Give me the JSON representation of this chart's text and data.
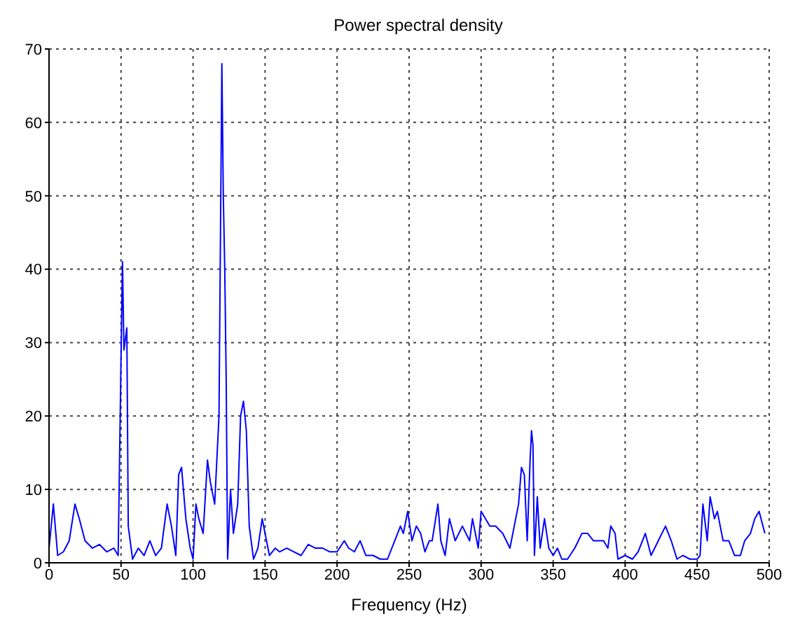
{
  "chart_data": {
    "type": "line",
    "title": "Power spectral density",
    "xlabel": "Frequency (Hz)",
    "x": [
      0,
      3,
      6,
      10,
      14,
      18,
      21,
      25,
      30,
      35,
      40,
      45,
      48,
      50,
      51,
      52,
      54,
      55,
      58,
      62,
      66,
      70,
      74,
      78,
      82,
      85,
      88,
      90,
      92,
      95,
      98,
      100,
      102,
      104,
      107,
      110,
      112,
      115,
      118,
      120,
      121,
      122,
      123,
      124,
      126,
      128,
      131,
      133,
      135,
      137,
      139,
      142,
      145,
      148,
      150,
      153,
      157,
      160,
      165,
      170,
      175,
      180,
      185,
      190,
      195,
      200,
      205,
      208,
      212,
      216,
      220,
      225,
      230,
      235,
      240,
      244,
      246,
      249,
      252,
      255,
      258,
      261,
      264,
      266,
      270,
      272,
      275,
      278,
      282,
      287,
      292,
      294,
      298,
      300,
      303,
      306,
      310,
      315,
      320,
      324,
      326,
      328,
      330,
      332,
      334,
      335,
      336,
      337,
      339,
      341,
      344,
      347,
      350,
      353,
      356,
      360,
      365,
      370,
      374,
      378,
      381,
      385,
      388,
      390,
      393,
      395,
      400,
      405,
      409,
      414,
      418,
      423,
      428,
      432,
      436,
      440,
      445,
      450,
      452,
      454,
      457,
      459,
      462,
      464,
      468,
      472,
      476,
      480,
      483,
      487,
      490,
      493,
      497
    ],
    "series": [
      {
        "color": "#0000ff",
        "values": [
          2,
          8,
          1,
          1.5,
          3,
          8,
          6,
          3,
          2,
          2.5,
          1.5,
          2,
          1,
          28,
          41,
          29,
          32,
          5,
          0.5,
          2,
          1,
          3,
          1,
          2,
          8,
          5,
          1,
          12,
          13,
          6,
          2,
          0.5,
          8,
          6,
          4,
          14,
          11,
          8,
          20,
          68,
          50,
          40,
          25,
          0.5,
          10,
          4,
          8,
          20,
          22,
          18,
          5,
          0.5,
          2,
          6,
          4,
          1,
          2,
          1.5,
          2,
          1.5,
          1,
          2.5,
          2,
          2,
          1.5,
          1.5,
          3,
          2,
          1.5,
          3,
          1,
          1,
          0.5,
          0.5,
          3,
          5,
          4,
          7,
          3,
          5,
          4,
          1.5,
          3,
          3,
          8,
          3,
          1,
          6,
          3,
          5,
          3,
          6,
          2,
          7,
          6,
          5,
          5,
          4,
          2,
          6,
          8,
          13,
          12,
          3,
          14,
          18,
          16,
          1,
          9,
          2,
          6,
          2,
          1,
          2,
          0.5,
          0.5,
          2,
          4,
          4,
          3,
          3,
          3,
          2,
          5,
          4,
          0.5,
          1,
          0.5,
          1.5,
          4,
          1,
          3,
          5,
          3,
          0.5,
          1,
          0.5,
          0.5,
          1,
          8,
          3,
          9,
          6,
          7,
          3,
          3,
          1,
          1,
          3,
          4,
          6,
          7,
          4
        ]
      }
    ],
    "xlim": [
      0,
      500
    ],
    "xticks": [
      0,
      50,
      100,
      150,
      200,
      250,
      300,
      350,
      400,
      450,
      500
    ],
    "ylim": [
      0,
      70
    ],
    "yticks": [
      0,
      10,
      20,
      30,
      40,
      50,
      60,
      70
    ],
    "grid": true,
    "line_style": "solid"
  }
}
